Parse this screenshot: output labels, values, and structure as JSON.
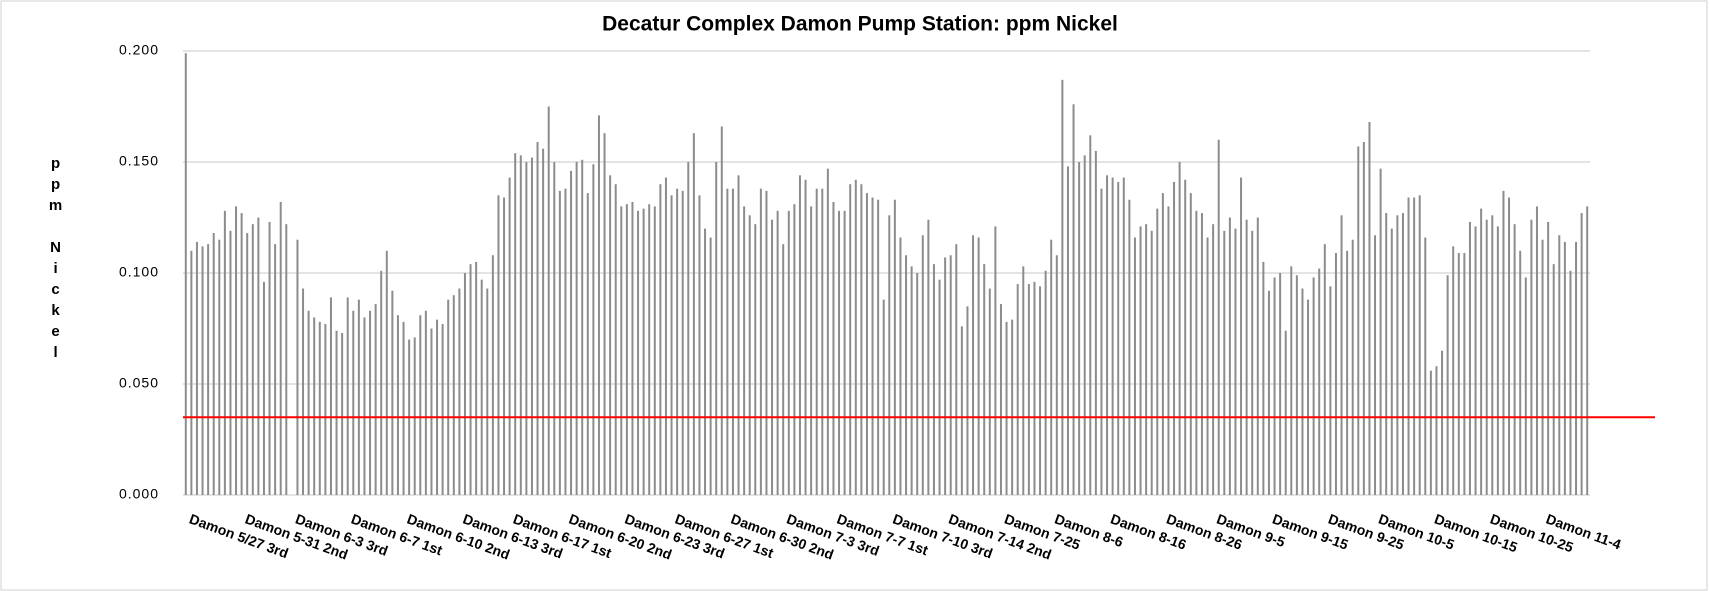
{
  "chart_data": {
    "type": "bar",
    "title": "Decatur Complex Damon Pump Station:  ppm Nickel",
    "y_label": "ppm Nickel",
    "color": "#8c8c8c",
    "grid": true,
    "reference_line": {
      "value": 0.035,
      "color": "#ff0000"
    },
    "ylim": [
      0,
      0.2
    ],
    "yticks": [
      {
        "value": 0,
        "label": "0.000"
      },
      {
        "value": 0.05,
        "label": "0.050"
      },
      {
        "value": 0.1,
        "label": "0.100"
      },
      {
        "value": 0.15,
        "label": "0.150"
      },
      {
        "value": 0.2,
        "label": "0.200"
      }
    ],
    "categories": [
      "Damon 5/27 3rd",
      null,
      null,
      null,
      null,
      null,
      null,
      null,
      null,
      null,
      "Damon 5-31 2nd",
      null,
      null,
      null,
      null,
      null,
      null,
      null,
      null,
      "Damon 6-3 3rd",
      null,
      null,
      null,
      null,
      null,
      null,
      null,
      null,
      null,
      "Damon 6-7 1st",
      null,
      null,
      null,
      null,
      null,
      null,
      null,
      null,
      null,
      "Damon 6-10 2nd",
      null,
      null,
      null,
      null,
      null,
      null,
      null,
      null,
      null,
      "Damon 6-13 3rd",
      null,
      null,
      null,
      null,
      null,
      null,
      null,
      null,
      "Damon 6-17 1st",
      null,
      null,
      null,
      null,
      null,
      null,
      null,
      null,
      null,
      "Damon 6-20 2nd",
      null,
      null,
      null,
      null,
      null,
      null,
      null,
      null,
      null,
      "Damon 6-23 3rd",
      null,
      null,
      null,
      null,
      null,
      null,
      null,
      null,
      "Damon 6-27 1st",
      null,
      null,
      null,
      null,
      null,
      null,
      null,
      null,
      null,
      "Damon 6-30 2nd",
      null,
      null,
      null,
      null,
      null,
      null,
      null,
      null,
      null,
      "Damon 7-3 3rd",
      null,
      null,
      null,
      null,
      null,
      null,
      null,
      null,
      "Damon 7-7 1st",
      null,
      null,
      null,
      null,
      null,
      null,
      null,
      null,
      null,
      "Damon 7-10 3rd",
      null,
      null,
      null,
      null,
      null,
      null,
      null,
      null,
      null,
      "Damon 7-14 2nd",
      null,
      null,
      null,
      null,
      null,
      null,
      null,
      null,
      null,
      "Damon 7-25",
      null,
      null,
      null,
      null,
      null,
      null,
      null,
      null,
      "Damon 8-6",
      null,
      null,
      null,
      null,
      null,
      null,
      null,
      null,
      null,
      "Damon 8-16",
      null,
      null,
      null,
      null,
      null,
      null,
      null,
      null,
      null,
      "Damon 8-26",
      null,
      null,
      null,
      null,
      null,
      null,
      null,
      null,
      "Damon 9-5",
      null,
      null,
      null,
      null,
      null,
      null,
      null,
      null,
      null,
      "Damon 9-15",
      null,
      null,
      null,
      null,
      null,
      null,
      null,
      null,
      null,
      "Damon 9-25",
      null,
      null,
      null,
      null,
      null,
      null,
      null,
      null,
      "Damon 10-5",
      null,
      null,
      null,
      null,
      null,
      null,
      null,
      null,
      null,
      "Damon 10-15",
      null,
      null,
      null,
      null,
      null,
      null,
      null,
      null,
      null,
      "Damon 10-25",
      null,
      null,
      null,
      null,
      null,
      null,
      null,
      null,
      null,
      "Damon 11-4",
      null,
      null,
      null,
      null,
      null,
      null,
      null,
      null
    ],
    "values": [
      0.199,
      0.11,
      0.114,
      0.112,
      0.113,
      0.118,
      0.115,
      0.128,
      0.119,
      0.13,
      0.127,
      0.118,
      0.122,
      0.125,
      0.096,
      0.123,
      0.113,
      0.132,
      0.122,
      0.0,
      0.115,
      0.093,
      0.083,
      0.08,
      0.078,
      0.077,
      0.089,
      0.074,
      0.073,
      0.089,
      0.083,
      0.088,
      0.08,
      0.083,
      0.086,
      0.101,
      0.11,
      0.092,
      0.081,
      0.078,
      0.07,
      0.071,
      0.081,
      0.083,
      0.075,
      0.079,
      0.077,
      0.088,
      0.09,
      0.093,
      0.1,
      0.104,
      0.105,
      0.097,
      0.093,
      0.108,
      0.135,
      0.134,
      0.143,
      0.154,
      0.153,
      0.15,
      0.152,
      0.159,
      0.156,
      0.175,
      0.15,
      0.137,
      0.138,
      0.146,
      0.15,
      0.151,
      0.136,
      0.149,
      0.171,
      0.163,
      0.144,
      0.14,
      0.13,
      0.131,
      0.132,
      0.128,
      0.129,
      0.131,
      0.13,
      0.14,
      0.143,
      0.135,
      0.138,
      0.137,
      0.15,
      0.163,
      0.135,
      0.12,
      0.116,
      0.15,
      0.166,
      0.138,
      0.138,
      0.144,
      0.13,
      0.126,
      0.122,
      0.138,
      0.137,
      0.124,
      0.128,
      0.113,
      0.128,
      0.131,
      0.144,
      0.142,
      0.13,
      0.138,
      0.138,
      0.147,
      0.132,
      0.128,
      0.128,
      0.14,
      0.142,
      0.14,
      0.136,
      0.134,
      0.133,
      0.088,
      0.126,
      0.133,
      0.116,
      0.108,
      0.103,
      0.1,
      0.117,
      0.124,
      0.104,
      0.097,
      0.107,
      0.108,
      0.113,
      0.076,
      0.085,
      0.117,
      0.116,
      0.104,
      0.093,
      0.121,
      0.086,
      0.078,
      0.079,
      0.095,
      0.103,
      0.095,
      0.096,
      0.094,
      0.101,
      0.115,
      0.108,
      0.187,
      0.148,
      0.176,
      0.15,
      0.153,
      0.162,
      0.155,
      0.138,
      0.144,
      0.143,
      0.141,
      0.143,
      0.133,
      0.116,
      0.121,
      0.122,
      0.119,
      0.129,
      0.136,
      0.13,
      0.141,
      0.15,
      0.142,
      0.136,
      0.128,
      0.127,
      0.116,
      0.122,
      0.16,
      0.119,
      0.125,
      0.12,
      0.143,
      0.124,
      0.119,
      0.125,
      0.105,
      0.092,
      0.098,
      0.1,
      0.074,
      0.103,
      0.099,
      0.093,
      0.088,
      0.098,
      0.102,
      0.113,
      0.094,
      0.109,
      0.126,
      0.11,
      0.115,
      0.157,
      0.159,
      0.168,
      0.117,
      0.147,
      0.127,
      0.12,
      0.126,
      0.127,
      0.134,
      0.134,
      0.135,
      0.116,
      0.056,
      0.058,
      0.065,
      0.099,
      0.112,
      0.109,
      0.109,
      0.123,
      0.121,
      0.129,
      0.124,
      0.126,
      0.121,
      0.137,
      0.134,
      0.122,
      0.11,
      0.098,
      0.124,
      0.13,
      0.115,
      0.123,
      0.104,
      0.117,
      0.114,
      0.101,
      0.114,
      0.127,
      0.13
    ]
  }
}
